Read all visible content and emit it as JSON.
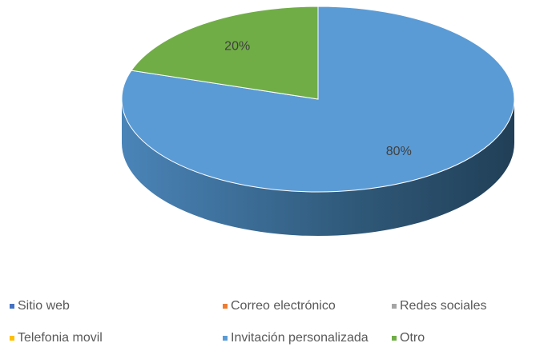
{
  "chart_data": {
    "type": "pie",
    "categories": [
      "Sitio web",
      "Correo electrónico",
      "Redes sociales",
      "Telefonia movil",
      "Invitación personalizada",
      "Otro"
    ],
    "values": [
      0,
      0,
      0,
      0,
      80,
      20
    ],
    "value_labels": [
      null,
      null,
      null,
      null,
      "80%",
      "20%"
    ],
    "colors": [
      "#4472c4",
      "#ed7d31",
      "#a5a5a5",
      "#ffc000",
      "#5b9bd5",
      "#70ad47"
    ],
    "legend": "bottom"
  }
}
